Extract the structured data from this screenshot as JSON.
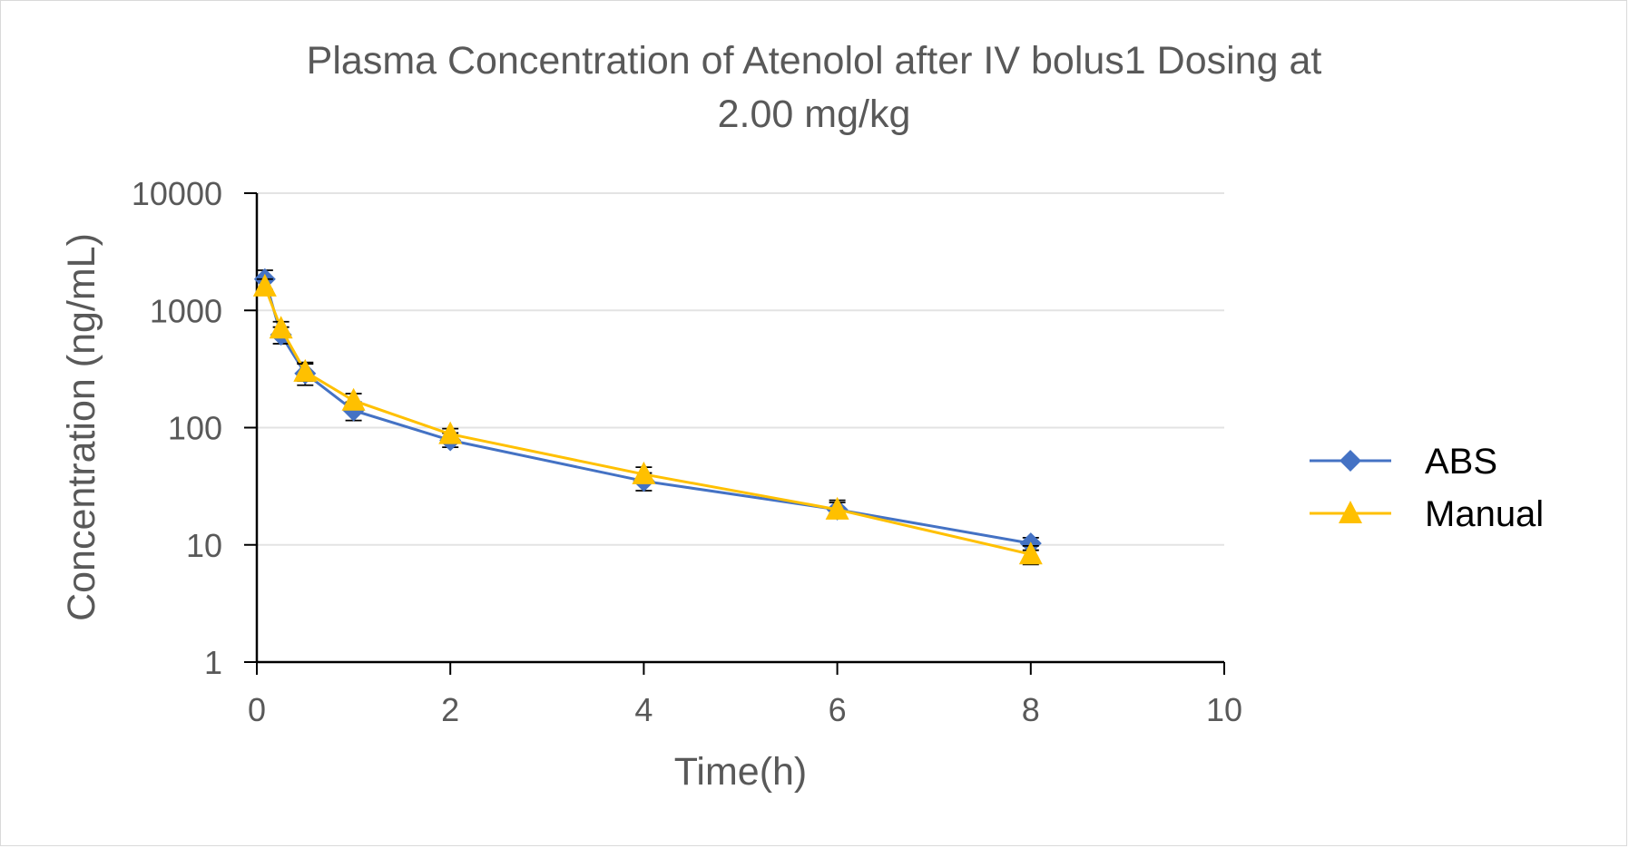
{
  "chart_data": {
    "type": "line",
    "title": [
      "Plasma Concentration of Atenolol after IV bolus1 Dosing at",
      "2.00 mg/kg"
    ],
    "xlabel": "Time(h)",
    "ylabel": "Concentration (ng/mL)",
    "xlim": [
      0,
      10
    ],
    "xticks": [
      0,
      2,
      4,
      6,
      8,
      10
    ],
    "xtick_labels": [
      "0",
      "2",
      "4",
      "6",
      "8",
      "10"
    ],
    "yscale": "log",
    "ylim": [
      1,
      10000
    ],
    "yticks": [
      1,
      10,
      100,
      1000,
      10000
    ],
    "ytick_labels": [
      "1",
      "10",
      "100",
      "1000",
      "10000"
    ],
    "grid": "horizontal",
    "legend_position": "right",
    "series": [
      {
        "name": "ABS",
        "color": "#4472C4",
        "marker": "diamond",
        "x": [
          0.083,
          0.25,
          0.5,
          1,
          2,
          4,
          6,
          8
        ],
        "y": [
          1850,
          620,
          290,
          140,
          78,
          35,
          20,
          10.3
        ],
        "err_low": [
          1500,
          520,
          230,
          115,
          68,
          29,
          17,
          9.0
        ],
        "err_high": [
          2200,
          720,
          360,
          165,
          90,
          41,
          24,
          11.5
        ]
      },
      {
        "name": "Manual",
        "color": "#FFC000",
        "marker": "triangle",
        "x": [
          0.083,
          0.25,
          0.5,
          1,
          2,
          4,
          6,
          8
        ],
        "y": [
          1600,
          700,
          300,
          170,
          88,
          40,
          20,
          8.3
        ],
        "err_low": [
          1400,
          600,
          250,
          145,
          78,
          35,
          17,
          6.8
        ],
        "err_high": [
          1850,
          800,
          350,
          195,
          98,
          46,
          23,
          9.8
        ]
      }
    ]
  }
}
